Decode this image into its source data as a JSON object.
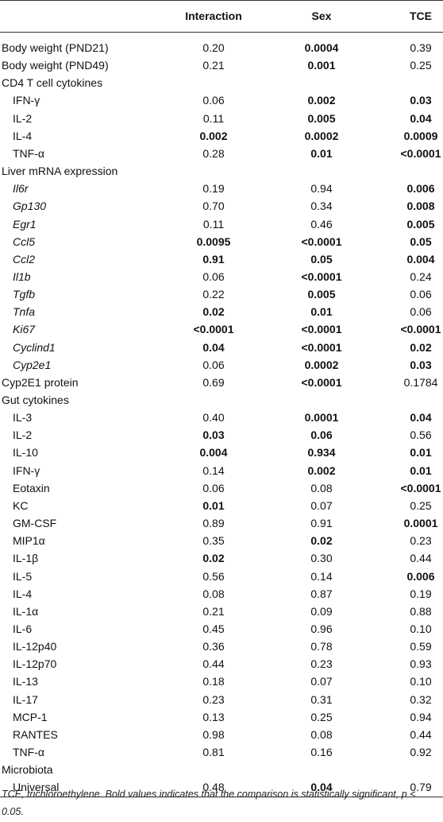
{
  "table": {
    "columns": [
      "Interaction",
      "Sex",
      "TCE"
    ],
    "rows": [
      {
        "label": "Body weight (PND21)",
        "values": [
          "0.20",
          "0.0004",
          "0.39"
        ],
        "bold": [
          false,
          true,
          false
        ]
      },
      {
        "label": "Body weight (PND49)",
        "values": [
          "0.21",
          "0.001",
          "0.25"
        ],
        "bold": [
          false,
          true,
          false
        ]
      },
      {
        "heading": "CD4 T cell cytokines",
        "rows": [
          {
            "label": "IFN-γ",
            "values": [
              "0.06",
              "0.002",
              "0.03"
            ],
            "bold": [
              false,
              true,
              true
            ]
          },
          {
            "label": "IL-2",
            "values": [
              "0.11",
              "0.005",
              "0.04"
            ],
            "bold": [
              false,
              true,
              true
            ]
          },
          {
            "label": "IL-4",
            "values": [
              "0.002",
              "0.0002",
              "0.0009"
            ],
            "bold": [
              true,
              true,
              true
            ]
          },
          {
            "label": "TNF-α",
            "values": [
              "0.28",
              "0.01",
              "<0.0001"
            ],
            "bold": [
              false,
              true,
              true
            ]
          }
        ]
      },
      {
        "heading": "Liver mRNA expression",
        "italic": true,
        "rows": [
          {
            "label": "Il6r",
            "values": [
              "0.19",
              "0.94",
              "0.006"
            ],
            "bold": [
              false,
              false,
              true
            ]
          },
          {
            "label": "Gp130",
            "values": [
              "0.70",
              "0.34",
              "0.008"
            ],
            "bold": [
              false,
              false,
              true
            ]
          },
          {
            "label": "Egr1",
            "values": [
              "0.11",
              "0.46",
              "0.005"
            ],
            "bold": [
              false,
              false,
              true
            ]
          },
          {
            "label": "Ccl5",
            "values": [
              "0.0095",
              "<0.0001",
              "0.05"
            ],
            "bold": [
              true,
              true,
              true
            ]
          },
          {
            "label": "Ccl2",
            "values": [
              "0.91",
              "0.05",
              "0.004"
            ],
            "bold": [
              true,
              true,
              true
            ]
          },
          {
            "label": "Il1b",
            "values": [
              "0.06",
              "<0.0001",
              "0.24"
            ],
            "bold": [
              false,
              true,
              false
            ]
          },
          {
            "label": "Tgfb",
            "values": [
              "0.22",
              "0.005",
              "0.06"
            ],
            "bold": [
              false,
              true,
              false
            ]
          },
          {
            "label": "Tnfa",
            "values": [
              "0.02",
              "0.01",
              "0.06"
            ],
            "bold": [
              true,
              true,
              false
            ]
          },
          {
            "label": "Ki67",
            "values": [
              "<0.0001",
              "<0.0001",
              "<0.0001"
            ],
            "bold": [
              true,
              true,
              true
            ]
          },
          {
            "label": "Cyclind1",
            "values": [
              "0.04",
              "<0.0001",
              "0.02"
            ],
            "bold": [
              true,
              true,
              true
            ]
          },
          {
            "label": "Cyp2e1",
            "values": [
              "0.06",
              "0.0002",
              "0.03"
            ],
            "bold": [
              false,
              true,
              true
            ]
          }
        ]
      },
      {
        "label": "Cyp2E1 protein",
        "values": [
          "0.69",
          "<0.0001",
          "0.1784"
        ],
        "bold": [
          false,
          true,
          false
        ]
      },
      {
        "heading": "Gut cytokines",
        "rows": [
          {
            "label": "IL-3",
            "values": [
              "0.40",
              "0.0001",
              "0.04"
            ],
            "bold": [
              false,
              true,
              true
            ]
          },
          {
            "label": "IL-2",
            "values": [
              "0.03",
              "0.06",
              "0.56"
            ],
            "bold": [
              true,
              true,
              false
            ]
          },
          {
            "label": "IL-10",
            "values": [
              "0.004",
              "0.934",
              "0.01"
            ],
            "bold": [
              true,
              true,
              true
            ]
          },
          {
            "label": "IFN-γ",
            "values": [
              "0.14",
              "0.002",
              "0.01"
            ],
            "bold": [
              false,
              true,
              true
            ]
          },
          {
            "label": "Eotaxin",
            "values": [
              "0.06",
              "0.08",
              "<0.0001"
            ],
            "bold": [
              false,
              false,
              true
            ]
          },
          {
            "label": "KC",
            "values": [
              "0.01",
              "0.07",
              "0.25"
            ],
            "bold": [
              true,
              false,
              false
            ]
          },
          {
            "label": "GM-CSF",
            "values": [
              "0.89",
              "0.91",
              "0.0001"
            ],
            "bold": [
              false,
              false,
              true
            ]
          },
          {
            "label": "MIP1α",
            "values": [
              "0.35",
              "0.02",
              "0.23"
            ],
            "bold": [
              false,
              true,
              false
            ]
          },
          {
            "label": "IL-1β",
            "values": [
              "0.02",
              "0.30",
              "0.44"
            ],
            "bold": [
              true,
              false,
              false
            ]
          },
          {
            "label": "IL-5",
            "values": [
              "0.56",
              "0.14",
              "0.006"
            ],
            "bold": [
              false,
              false,
              true
            ]
          },
          {
            "label": "IL-4",
            "values": [
              "0.08",
              "0.87",
              "0.19"
            ],
            "bold": [
              false,
              false,
              false
            ]
          },
          {
            "label": "IL-1α",
            "values": [
              "0.21",
              "0.09",
              "0.88"
            ],
            "bold": [
              false,
              false,
              false
            ]
          },
          {
            "label": "IL-6",
            "values": [
              "0.45",
              "0.96",
              "0.10"
            ],
            "bold": [
              false,
              false,
              false
            ]
          },
          {
            "label": "IL-12p40",
            "values": [
              "0.36",
              "0.78",
              "0.59"
            ],
            "bold": [
              false,
              false,
              false
            ]
          },
          {
            "label": "IL-12p70",
            "values": [
              "0.44",
              "0.23",
              "0.93"
            ],
            "bold": [
              false,
              false,
              false
            ]
          },
          {
            "label": "IL-13",
            "values": [
              "0.18",
              "0.07",
              "0.10"
            ],
            "bold": [
              false,
              false,
              false
            ]
          },
          {
            "label": "IL-17",
            "values": [
              "0.23",
              "0.31",
              "0.32"
            ],
            "bold": [
              false,
              false,
              false
            ]
          },
          {
            "label": "MCP-1",
            "values": [
              "0.13",
              "0.25",
              "0.94"
            ],
            "bold": [
              false,
              false,
              false
            ]
          },
          {
            "label": "RANTES",
            "values": [
              "0.98",
              "0.08",
              "0.44"
            ],
            "bold": [
              false,
              false,
              false
            ]
          },
          {
            "label": "TNF-α",
            "values": [
              "0.81",
              "0.16",
              "0.92"
            ],
            "bold": [
              false,
              false,
              false
            ]
          }
        ]
      },
      {
        "heading": "Microbiota",
        "rows": [
          {
            "label": "Universal",
            "values": [
              "0.48",
              "0.04",
              "0.79"
            ],
            "bold": [
              false,
              true,
              false
            ]
          }
        ]
      }
    ],
    "footnote": "TCE, trichloroethylene. Bold values indicates that the comparison is statistically significant, p < 0.05."
  }
}
